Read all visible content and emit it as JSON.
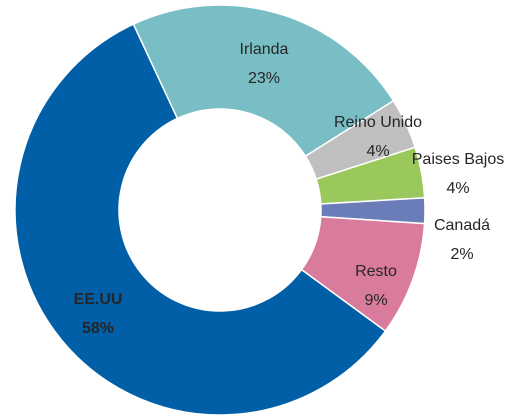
{
  "chart_data": {
    "type": "donut",
    "categories": [
      "Irlanda",
      "Reino Unido",
      "Paises Bajos",
      "Canadá",
      "Resto",
      "EE.UU"
    ],
    "values": [
      23,
      4,
      4,
      2,
      9,
      58
    ],
    "value_labels": [
      "23%",
      "4%",
      "4%",
      "2%",
      "9%",
      "58%"
    ],
    "colors": [
      "#78bec4",
      "#bfbfbf",
      "#9bc85c",
      "#6a7db8",
      "#d97b9c",
      "#005fa6"
    ]
  }
}
